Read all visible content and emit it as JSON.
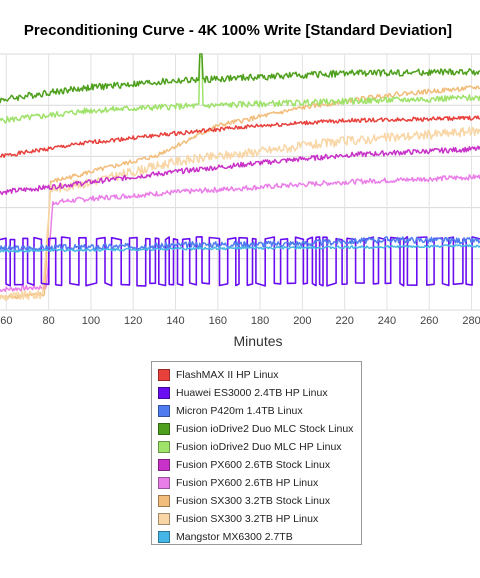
{
  "chart_data": {
    "type": "line",
    "title": "Preconditioning Curve - 4K 100% Write [Standard Deviation]",
    "xlabel": "Minutes",
    "x_ticks": [
      60,
      80,
      100,
      120,
      140,
      160,
      180,
      200,
      220,
      240,
      260,
      280
    ],
    "xlim": [
      57,
      284
    ],
    "ylim": [
      0,
      100
    ],
    "grid": true,
    "legend_position": "bottom-center",
    "series": [
      {
        "name": "FlashMAX II HP Linux",
        "color": "#e8413c",
        "points": [
          [
            57,
            60
          ],
          [
            80,
            63
          ],
          [
            100,
            65.5
          ],
          [
            140,
            69
          ],
          [
            180,
            72
          ],
          [
            220,
            74
          ],
          [
            284,
            75
          ]
        ],
        "noise": 0.8,
        "seed": 1
      },
      {
        "name": "Huawei ES3000 2.4TB HP Linux",
        "color": "#6a0df0",
        "osc": true,
        "high": 28,
        "low": 10,
        "seed": 2
      },
      {
        "name": "Micron P420m 1.4TB Linux",
        "color": "#4f7df0",
        "points": [
          [
            57,
            24
          ],
          [
            100,
            24.5
          ],
          [
            150,
            25.5
          ],
          [
            200,
            26
          ],
          [
            240,
            27.5
          ],
          [
            284,
            27
          ]
        ],
        "noise": 1.2,
        "seed": 3
      },
      {
        "name": "Fusion ioDrive2 Duo MLC Stock Linux",
        "color": "#4ea01c",
        "points": [
          [
            57,
            82
          ],
          [
            80,
            85
          ],
          [
            100,
            87
          ],
          [
            140,
            89.5
          ],
          [
            180,
            91
          ],
          [
            220,
            92.5
          ],
          [
            284,
            93
          ]
        ],
        "noise": 1.3,
        "seed": 4,
        "spike": [
          152,
          100
        ]
      },
      {
        "name": "Fusion ioDrive2 Duo MLC HP Linux",
        "color": "#9ee26a",
        "points": [
          [
            57,
            74
          ],
          [
            80,
            76
          ],
          [
            100,
            78
          ],
          [
            140,
            79.5
          ],
          [
            180,
            80.5
          ],
          [
            220,
            81.5
          ],
          [
            284,
            83
          ]
        ],
        "noise": 1.2,
        "seed": 5,
        "spike": [
          152,
          99
        ]
      },
      {
        "name": "Fusion PX600 2.6TB Stock Linux",
        "color": "#c832c8",
        "points": [
          [
            57,
            46
          ],
          [
            80,
            48
          ],
          [
            100,
            50
          ],
          [
            140,
            54
          ],
          [
            180,
            57.5
          ],
          [
            220,
            60.5
          ],
          [
            284,
            63
          ]
        ],
        "noise": 1.0,
        "seed": 6
      },
      {
        "name": "Fusion PX600 2.6TB HP Linux",
        "color": "#ea7ee8",
        "points": [
          [
            57,
            8
          ],
          [
            79,
            9
          ],
          [
            82,
            42
          ],
          [
            100,
            43.5
          ],
          [
            140,
            46
          ],
          [
            180,
            48
          ],
          [
            220,
            50
          ],
          [
            284,
            52
          ]
        ],
        "noise": 1.0,
        "seed": 7
      },
      {
        "name": "Fusion SX300 3.2TB Stock Linux",
        "color": "#f2bd7a",
        "points": [
          [
            57,
            5
          ],
          [
            78,
            6
          ],
          [
            81,
            50
          ],
          [
            100,
            54
          ],
          [
            130,
            60
          ],
          [
            160,
            72
          ],
          [
            200,
            79
          ],
          [
            240,
            84
          ],
          [
            284,
            87
          ]
        ],
        "noise": 0.9,
        "seed": 8
      },
      {
        "name": "Fusion SX300 3.2TB HP Linux",
        "color": "#f8d6a6",
        "points": [
          [
            57,
            5
          ],
          [
            77,
            6
          ],
          [
            81,
            47
          ],
          [
            100,
            50
          ],
          [
            140,
            58
          ],
          [
            180,
            62
          ],
          [
            220,
            66
          ],
          [
            284,
            70
          ]
        ],
        "noise": 1.8,
        "seed": 9
      },
      {
        "name": "Mangstor MX6300 2.7TB",
        "color": "#46b6e6",
        "points": [
          [
            57,
            23
          ],
          [
            100,
            23.5
          ],
          [
            150,
            24
          ],
          [
            200,
            24.3
          ],
          [
            250,
            24.8
          ],
          [
            284,
            25
          ]
        ],
        "noise": 0.5,
        "seed": 10
      }
    ]
  }
}
